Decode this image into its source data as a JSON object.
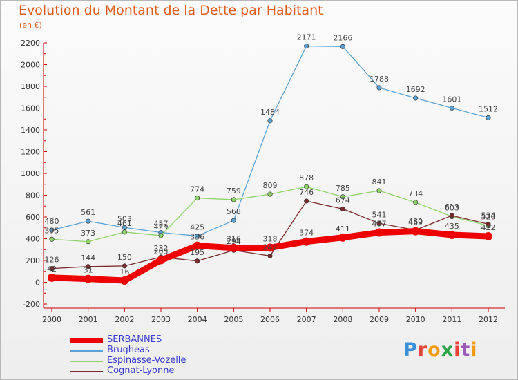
{
  "title": "Evolution du Montant de la Dette par Habitant",
  "subtitle": "(en €)",
  "logo": {
    "text": "Proxiti",
    "colors": [
      "#3a8fd8",
      "#e8433a",
      "#f39c12",
      "#2ea34a",
      "#e8433a",
      "#9b59b6",
      "#f39c12"
    ]
  },
  "chart_data": {
    "type": "line",
    "title": "Evolution du Montant de la Dette par Habitant",
    "subtitle": "(en €)",
    "x": [
      "2000",
      "2001",
      "2002",
      "2003",
      "2004",
      "2005",
      "2006",
      "2007",
      "2008",
      "2009",
      "2010",
      "2011",
      "2012"
    ],
    "ylim": [
      -200,
      2200
    ],
    "yticks": [
      "-200",
      "0",
      "200",
      "400",
      "600",
      "800",
      "1000",
      "1200",
      "1400",
      "1600",
      "1800",
      "2000",
      "2200"
    ],
    "grid": false,
    "legend_position": "bottom-left",
    "series": [
      {
        "name": "SERBANNES",
        "color": "#ee0000",
        "values": [
          42,
          31,
          16,
          203,
          336,
          316,
          318,
          374,
          411,
          457,
          469,
          435,
          422
        ],
        "labels": [
          "42",
          "31",
          "16",
          "203",
          "336",
          "316",
          "318",
          "374",
          "411",
          "457",
          "469",
          "435",
          "422"
        ]
      },
      {
        "name": "Brugheas",
        "color": "#5ba3d6",
        "values": [
          480,
          561,
          503,
          457,
          425,
          568,
          1484,
          2171,
          2166,
          1788,
          1692,
          1601,
          1512
        ],
        "labels": [
          "480",
          "561",
          "503",
          "457",
          "425",
          "568",
          "1484",
          "2171",
          "2166",
          "1788",
          "1692",
          "1601",
          "1512"
        ]
      },
      {
        "name": "Espinasse-Vozelle",
        "color": "#8fd36b",
        "values": [
          395,
          373,
          461,
          429,
          774,
          759,
          809,
          878,
          785,
          841,
          734,
          603,
          520
        ],
        "labels": [
          "395",
          "373",
          "461",
          "429",
          "774",
          "759",
          "809",
          "878",
          "785",
          "841",
          "734",
          "603",
          "520"
        ]
      },
      {
        "name": "Cognat-Lyonne",
        "color": "#7a2a2a",
        "values": [
          126,
          144,
          150,
          232,
          195,
          294,
          242,
          746,
          674,
          541,
          480,
          613,
          534
        ],
        "labels": [
          "126",
          "144",
          "150",
          "232",
          "195",
          "294",
          "242",
          "746",
          "674",
          "541",
          "480",
          "613",
          "534"
        ]
      }
    ]
  }
}
